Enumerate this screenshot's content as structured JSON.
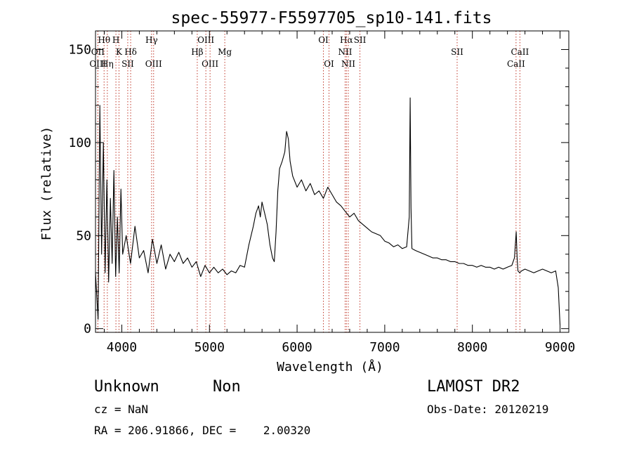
{
  "chart_data": {
    "type": "line",
    "title": "spec-55977-F5597705_sp10-141.fits",
    "xlabel": "Wavelength (Å)",
    "ylabel": "Flux (relative)",
    "xlim": [
      3700,
      9100
    ],
    "ylim": [
      -2,
      160
    ],
    "xticks": [
      4000,
      5000,
      6000,
      7000,
      8000,
      9000
    ],
    "yticks": [
      0,
      50,
      100,
      150
    ],
    "grid": false,
    "series": [
      {
        "color": "#000000",
        "x": [
          3700,
          3730,
          3750,
          3770,
          3790,
          3810,
          3830,
          3850,
          3870,
          3890,
          3910,
          3930,
          3950,
          3970,
          3990,
          4010,
          4050,
          4100,
          4150,
          4200,
          4250,
          4300,
          4350,
          4400,
          4450,
          4500,
          4550,
          4600,
          4650,
          4700,
          4750,
          4800,
          4850,
          4900,
          4950,
          5000,
          5050,
          5100,
          5150,
          5200,
          5250,
          5300,
          5350,
          5400,
          5450,
          5500,
          5530,
          5560,
          5580,
          5600,
          5630,
          5660,
          5690,
          5720,
          5740,
          5760,
          5780,
          5800,
          5830,
          5860,
          5880,
          5900,
          5920,
          5950,
          6000,
          6050,
          6100,
          6150,
          6200,
          6250,
          6300,
          6350,
          6400,
          6450,
          6500,
          6550,
          6600,
          6650,
          6700,
          6750,
          6800,
          6850,
          6900,
          6950,
          7000,
          7050,
          7100,
          7150,
          7200,
          7250,
          7280,
          7290,
          7300,
          7310,
          7350,
          7400,
          7450,
          7500,
          7550,
          7600,
          7650,
          7700,
          7750,
          7800,
          7850,
          7900,
          7950,
          8000,
          8050,
          8100,
          8150,
          8200,
          8250,
          8300,
          8350,
          8400,
          8450,
          8480,
          8500,
          8510,
          8520,
          8540,
          8560,
          8600,
          8650,
          8700,
          8750,
          8800,
          8850,
          8900,
          8950,
          8980,
          9000
        ],
        "values": [
          30,
          5,
          120,
          40,
          100,
          30,
          80,
          25,
          70,
          35,
          85,
          28,
          60,
          30,
          75,
          40,
          50,
          35,
          55,
          38,
          42,
          30,
          48,
          35,
          45,
          32,
          40,
          36,
          41,
          35,
          38,
          33,
          36,
          28,
          34,
          30,
          33,
          30,
          32,
          29,
          31,
          30,
          34,
          33,
          45,
          55,
          62,
          66,
          60,
          68,
          62,
          56,
          45,
          38,
          36,
          52,
          74,
          86,
          90,
          95,
          106,
          102,
          90,
          82,
          76,
          80,
          74,
          78,
          72,
          74,
          70,
          76,
          72,
          68,
          66,
          63,
          60,
          62,
          58,
          56,
          54,
          52,
          51,
          50,
          47,
          46,
          44,
          45,
          43,
          44,
          60,
          124,
          65,
          43,
          42,
          41,
          40,
          39,
          38,
          38,
          37,
          37,
          36,
          36,
          35,
          35,
          34,
          34,
          33,
          34,
          33,
          33,
          32,
          33,
          32,
          33,
          34,
          38,
          52,
          38,
          31,
          30,
          31,
          32,
          31,
          30,
          31,
          32,
          31,
          30,
          31,
          22,
          2
        ]
      }
    ],
    "spectral_lines": [
      {
        "label": "Hθ",
        "x": 3798,
        "row": 0
      },
      {
        "label": "H",
        "x": 3933,
        "row": 0
      },
      {
        "label": "Hγ",
        "x": 4340,
        "row": 0
      },
      {
        "label": "OIII",
        "x": 4959,
        "row": 0
      },
      {
        "label": "OI",
        "x": 6300,
        "row": 0
      },
      {
        "label": "Hα",
        "x": 6563,
        "row": 0
      },
      {
        "label": "SII",
        "x": 6717,
        "row": 0
      },
      {
        "label": "OII",
        "x": 3727,
        "row": 1
      },
      {
        "label": "K",
        "x": 3968,
        "row": 1
      },
      {
        "label": "Hδ",
        "x": 4101,
        "row": 1
      },
      {
        "label": "Hβ",
        "x": 4861,
        "row": 1
      },
      {
        "label": "Mg",
        "x": 5175,
        "row": 1
      },
      {
        "label": "NII",
        "x": 6548,
        "row": 1
      },
      {
        "label": "SII",
        "x": 7826,
        "row": 1
      },
      {
        "label": "CaII",
        "x": 8542,
        "row": 1
      },
      {
        "label": "OIII",
        "x": 3727,
        "row": 2
      },
      {
        "label": "Hη",
        "x": 3835,
        "row": 2
      },
      {
        "label": "SII",
        "x": 4068,
        "row": 2
      },
      {
        "label": "OIII",
        "x": 4363,
        "row": 2
      },
      {
        "label": "OIII",
        "x": 5007,
        "row": 2
      },
      {
        "label": "OI",
        "x": 6364,
        "row": 2
      },
      {
        "label": "NII",
        "x": 6584,
        "row": 2
      },
      {
        "label": "CaII",
        "x": 8498,
        "row": 2
      }
    ]
  },
  "footer": {
    "class": "Unknown",
    "subclass": "Non",
    "survey": "LAMOST DR2",
    "cz": "cz = NaN",
    "obs_date": "Obs-Date: 20120219",
    "coords": "RA = 206.91866, DEC =    2.00320"
  }
}
